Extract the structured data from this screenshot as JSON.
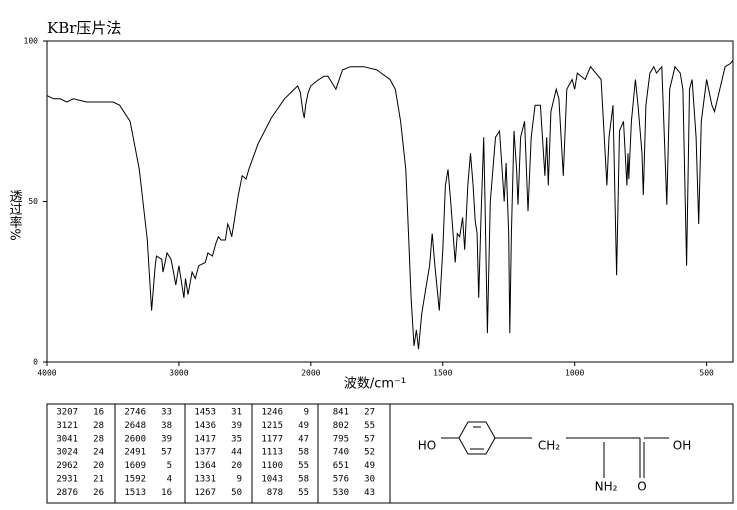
{
  "chart_data": {
    "type": "line",
    "title": "KBr压片法",
    "x_label": "波数/cm⁻¹",
    "y_label": "透过率%",
    "xlim": [
      4000,
      400
    ],
    "x_scale_break": 2000,
    "xticks": [
      4000,
      3000,
      2000,
      1500,
      1000,
      500
    ],
    "ylim": [
      0,
      100
    ],
    "yticks": [
      0,
      50,
      100
    ],
    "color": "#000000",
    "x": [
      4000,
      3950,
      3900,
      3850,
      3800,
      3700,
      3600,
      3500,
      3450,
      3370,
      3300,
      3240,
      3207,
      3180,
      3170,
      3130,
      3121,
      3090,
      3060,
      3041,
      3024,
      3000,
      2962,
      2950,
      2931,
      2900,
      2876,
      2850,
      2800,
      2780,
      2746,
      2720,
      2700,
      2680,
      2648,
      2630,
      2620,
      2600,
      2580,
      2550,
      2520,
      2491,
      2470,
      2400,
      2300,
      2200,
      2150,
      2100,
      2080,
      2060,
      2050,
      2040,
      2020,
      2000,
      1970,
      1950,
      1935,
      1905,
      1880,
      1850,
      1800,
      1750,
      1700,
      1680,
      1660,
      1640,
      1630,
      1620,
      1609,
      1600,
      1592,
      1580,
      1560,
      1550,
      1540,
      1530,
      1513,
      1500,
      1490,
      1480,
      1470,
      1453,
      1445,
      1436,
      1425,
      1417,
      1405,
      1395,
      1385,
      1377,
      1370,
      1364,
      1355,
      1345,
      1340,
      1331,
      1320,
      1300,
      1285,
      1275,
      1267,
      1260,
      1250,
      1246,
      1240,
      1230,
      1220,
      1215,
      1205,
      1190,
      1177,
      1165,
      1150,
      1130,
      1113,
      1106,
      1100,
      1090,
      1070,
      1060,
      1043,
      1030,
      1010,
      1000,
      990,
      960,
      940,
      920,
      900,
      878,
      870,
      855,
      841,
      830,
      815,
      802,
      798,
      795,
      785,
      770,
      760,
      745,
      740,
      730,
      715,
      700,
      690,
      670,
      651,
      640,
      620,
      600,
      590,
      576,
      565,
      555,
      540,
      530,
      520,
      500,
      480,
      470,
      450,
      430,
      410,
      400
    ],
    "values": [
      83,
      82,
      82,
      81,
      82,
      81,
      81,
      81,
      80,
      75,
      60,
      38,
      16,
      30,
      33,
      32,
      28,
      34,
      32,
      28,
      24,
      30,
      20,
      26,
      21,
      28,
      26,
      30,
      31,
      34,
      33,
      37,
      39,
      38,
      38,
      43,
      42,
      39,
      44,
      52,
      58,
      57,
      60,
      68,
      76,
      82,
      84,
      86,
      84,
      78,
      76,
      80,
      84,
      86,
      88,
      89,
      89,
      85,
      91,
      92,
      92,
      91,
      88,
      85,
      75,
      60,
      40,
      20,
      5,
      10,
      4,
      15,
      25,
      30,
      40,
      30,
      16,
      35,
      55,
      60,
      50,
      31,
      40,
      39,
      45,
      35,
      55,
      65,
      55,
      44,
      40,
      20,
      45,
      70,
      50,
      9,
      50,
      70,
      72,
      60,
      50,
      62,
      40,
      9,
      40,
      72,
      60,
      49,
      70,
      75,
      47,
      70,
      80,
      80,
      58,
      70,
      55,
      78,
      85,
      82,
      58,
      85,
      88,
      85,
      90,
      88,
      92,
      90,
      88,
      55,
      70,
      80,
      27,
      72,
      75,
      55,
      65,
      57,
      75,
      88,
      80,
      65,
      52,
      80,
      90,
      92,
      90,
      92,
      49,
      85,
      92,
      90,
      85,
      30,
      85,
      88,
      70,
      43,
      75,
      88,
      80,
      78,
      85,
      92,
      93,
      94
    ]
  },
  "peak_table": [
    [
      [
        3207,
        16
      ],
      [
        3121,
        28
      ],
      [
        3041,
        28
      ],
      [
        3024,
        24
      ],
      [
        2962,
        20
      ],
      [
        2931,
        21
      ],
      [
        2876,
        26
      ]
    ],
    [
      [
        2746,
        33
      ],
      [
        2648,
        38
      ],
      [
        2600,
        39
      ],
      [
        2491,
        57
      ],
      [
        1609,
        5
      ],
      [
        1592,
        4
      ],
      [
        1513,
        16
      ]
    ],
    [
      [
        1453,
        31
      ],
      [
        1436,
        39
      ],
      [
        1417,
        35
      ],
      [
        1377,
        44
      ],
      [
        1364,
        20
      ],
      [
        1331,
        9
      ],
      [
        1267,
        50
      ]
    ],
    [
      [
        1246,
        9
      ],
      [
        1215,
        49
      ],
      [
        1177,
        47
      ],
      [
        1113,
        58
      ],
      [
        1100,
        55
      ],
      [
        1043,
        58
      ],
      [
        878,
        55
      ]
    ],
    [
      [
        841,
        27
      ],
      [
        802,
        55
      ],
      [
        795,
        57
      ],
      [
        740,
        52
      ],
      [
        651,
        49
      ],
      [
        576,
        30
      ],
      [
        530,
        43
      ]
    ]
  ],
  "structure": {
    "labels": [
      "HO",
      "CH₂",
      "NH₂",
      "O",
      "OH"
    ]
  }
}
